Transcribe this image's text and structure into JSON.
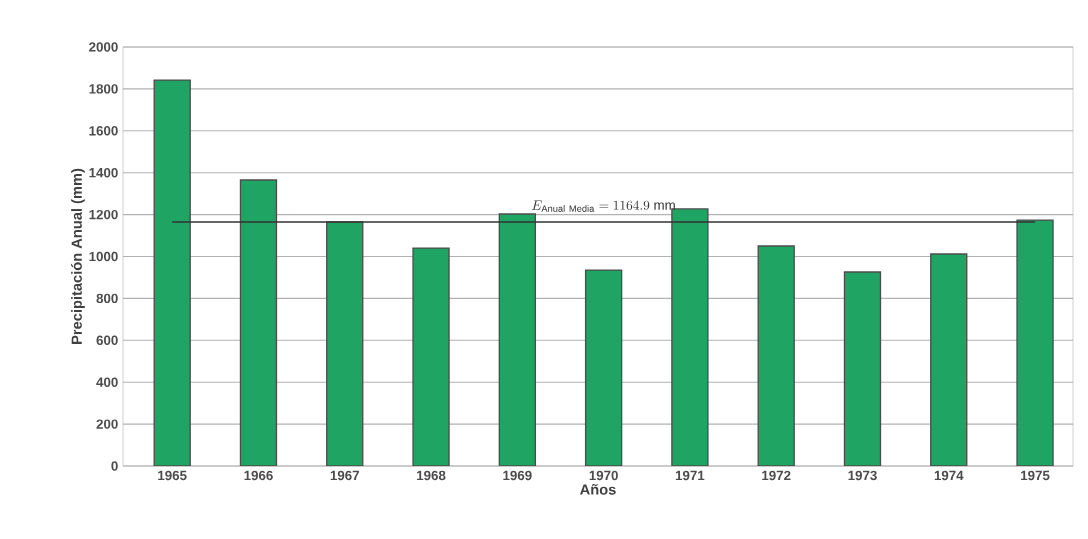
{
  "chart_data": {
    "type": "bar",
    "xlabel": "Años",
    "ylabel": "Precipitación Anual (mm)",
    "categories": [
      "1965",
      "1966",
      "1967",
      "1968",
      "1969",
      "1970",
      "1971",
      "1972",
      "1973",
      "1974",
      "1975"
    ],
    "values": [
      1842,
      1365,
      1165,
      1040,
      1203,
      935,
      1227,
      1050,
      926,
      1012,
      1174
    ],
    "color": "#1fa463",
    "ylim": [
      0,
      2000
    ],
    "yticks": [
      0,
      200,
      400,
      600,
      800,
      1000,
      1200,
      1400,
      1600,
      1800,
      2000
    ],
    "grid": "y",
    "ref_lines": [
      {
        "axis": "y",
        "value": 1164.9,
        "label": "E_{\\mathrm{Anual\\ Media}}=1164.9\\ \\mathrm{mm}",
        "color": "#333333"
      }
    ]
  }
}
